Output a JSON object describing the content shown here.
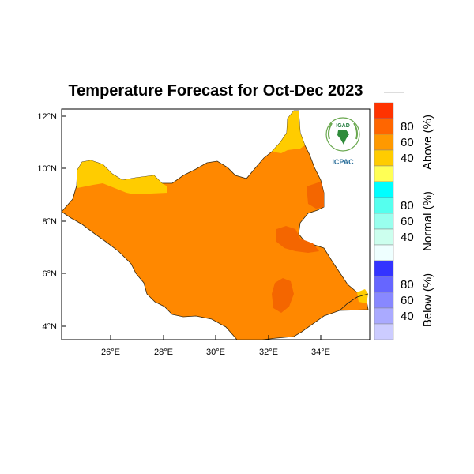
{
  "title": "Temperature Forecast for Oct-Dec 2023",
  "map": {
    "lat_ticks": [
      "12°N",
      "10°N",
      "8°N",
      "6°N",
      "4°N"
    ],
    "lon_ticks": [
      "26°E",
      "28°E",
      "30°E",
      "32°E",
      "34°E"
    ]
  },
  "logo": {
    "top_text": "IGAD",
    "bottom_text": "ICPAC"
  },
  "colorbar": {
    "above": {
      "title": "Above (%)",
      "labels": [
        "80",
        "60",
        "40"
      ],
      "colors": [
        "#ff3300",
        "#ff6600",
        "#ff9900",
        "#ffcc00",
        "#ffff55"
      ]
    },
    "normal": {
      "title": "Normal (%)",
      "labels": [
        "80",
        "60",
        "40"
      ],
      "colors": [
        "#00ffff",
        "#55ffee",
        "#99ffee",
        "#ccffee",
        "#eeffff"
      ]
    },
    "below": {
      "title": "Below (%)",
      "labels": [
        "80",
        "60",
        "40"
      ],
      "colors": [
        "#3333ff",
        "#6666ff",
        "#8888ff",
        "#aaaaff",
        "#ccccff"
      ]
    }
  },
  "colors": {
    "country_fill": "#ff8800",
    "hotspot": "#f46600",
    "yellow_zone": "#ffcc00"
  }
}
